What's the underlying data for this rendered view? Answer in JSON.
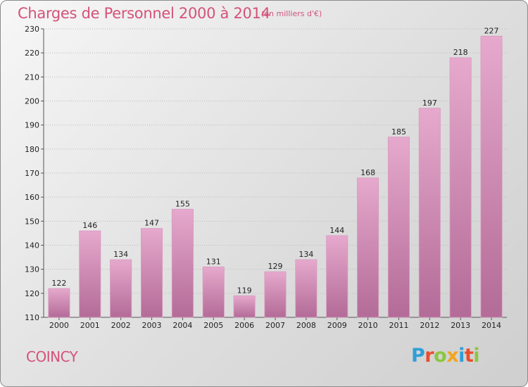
{
  "header": {
    "title": "Charges de Personnel 2000 à 2014",
    "subtitle": "(en milliers d'€)"
  },
  "footer": {
    "commune": "COINCY",
    "logo": "Proxiti",
    "logo_colors": [
      "#2e9fd8",
      "#e84d2f",
      "#8cc63f",
      "#f2a51f",
      "#2e9fd8",
      "#e84d2f",
      "#8cc63f"
    ]
  },
  "colors": {
    "bar_light": "#e6a9cd",
    "bar_dark": "#b36b97",
    "title": "#d4527a"
  },
  "chart_data": {
    "type": "bar",
    "title": "Charges de Personnel 2000 à 2014",
    "subtitle": "(en milliers d'€)",
    "categories": [
      "2000",
      "2001",
      "2002",
      "2003",
      "2004",
      "2005",
      "2006",
      "2007",
      "2008",
      "2009",
      "2010",
      "2011",
      "2012",
      "2013",
      "2014"
    ],
    "values": [
      122,
      146,
      134,
      147,
      155,
      131,
      119,
      129,
      134,
      144,
      168,
      185,
      197,
      218,
      227
    ],
    "ylim": [
      110,
      230
    ],
    "yticks": [
      110,
      120,
      130,
      140,
      150,
      160,
      170,
      180,
      190,
      200,
      210,
      220,
      230
    ],
    "grid": true
  }
}
